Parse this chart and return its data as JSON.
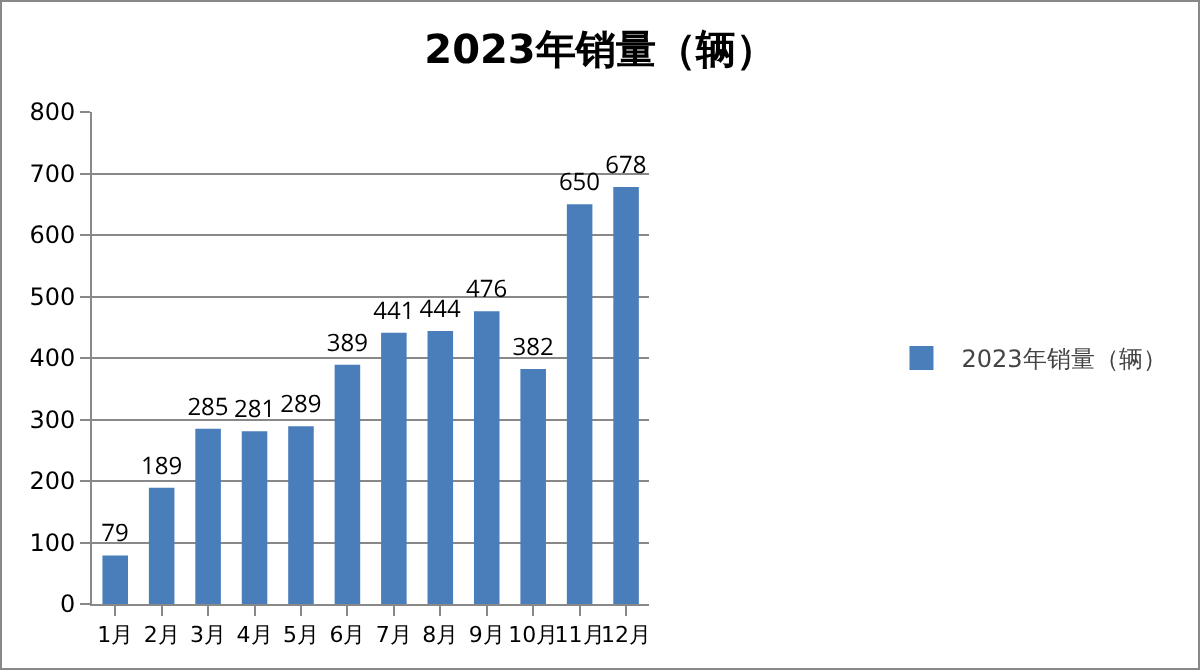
{
  "chart_data": {
    "type": "bar",
    "title": "2023年销量（辆）",
    "categories": [
      "1月",
      "2月",
      "3月",
      "4月",
      "5月",
      "6月",
      "7月",
      "8月",
      "9月",
      "10月",
      "11月",
      "12月"
    ],
    "series": [
      {
        "name": "2023年销量（辆）",
        "color": "#4a7ebb",
        "values": [
          79,
          189,
          285,
          281,
          289,
          389,
          441,
          444,
          476,
          382,
          650,
          678
        ]
      }
    ],
    "ylim": [
      0,
      800
    ],
    "yticks": [
      0,
      100,
      200,
      300,
      400,
      500,
      600,
      700,
      800
    ],
    "grid": "y",
    "legend": "right",
    "data_labels": true
  }
}
